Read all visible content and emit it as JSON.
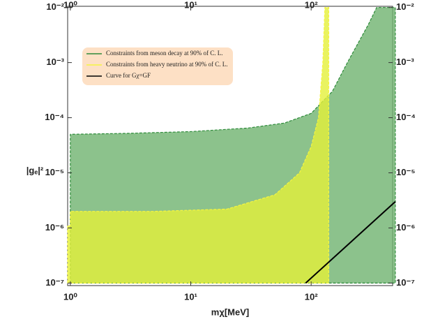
{
  "chart_data": {
    "type": "area",
    "xlabel": "mχ[MeV]",
    "ylabel": "|gₑ|²",
    "log_x": true,
    "log_y": true,
    "xlim": [
      0.95,
      475
    ],
    "ylim": [
      9e-08,
      0.0105
    ],
    "xticks": [
      {
        "value": 1,
        "label": "10⁰"
      },
      {
        "value": 10,
        "label": "10¹"
      },
      {
        "value": 100,
        "label": "10²"
      }
    ],
    "yticks": [
      {
        "value": 1e-07,
        "label": "10⁻⁷"
      },
      {
        "value": 1e-06,
        "label": "10⁻⁶"
      },
      {
        "value": 1e-05,
        "label": "10⁻⁵"
      },
      {
        "value": 0.0001,
        "label": "10⁻⁴"
      },
      {
        "value": 0.001,
        "label": "10⁻³"
      },
      {
        "value": 0.01,
        "label": "10⁻²"
      }
    ],
    "series": [
      {
        "name": "Constraints from meson decay at 90% of C. L.",
        "color": "#2e8b3a",
        "fill": "#6fb36f",
        "x": [
          1,
          1,
          3,
          10,
          30,
          60,
          100,
          150,
          200,
          300,
          350,
          500,
          500
        ],
        "y": [
          1e-07,
          5e-05,
          5.2e-05,
          5.6e-05,
          6.5e-05,
          8e-05,
          0.00012,
          0.0003,
          0.001,
          0.005,
          0.01,
          0.01,
          1e-07
        ]
      },
      {
        "name": "Constraints from heavy neutrino at 90% of C. L.",
        "color": "#f5f542",
        "fill": "#e3f03a",
        "x": [
          0.95,
          0.95,
          1,
          1,
          5,
          20,
          50,
          80,
          100,
          115,
          125,
          130,
          140,
          140
        ],
        "y": [
          1e-07,
          1.1e-06,
          1.1e-06,
          2e-06,
          2e-06,
          2.2e-06,
          4e-06,
          1e-05,
          3e-05,
          0.0001,
          0.001,
          0.01,
          0.01,
          1e-07
        ]
      },
      {
        "name": "Curve for Gχ=GF",
        "color": "#000000",
        "x": [
          90,
          500
        ],
        "y": [
          1e-07,
          3e-06
        ],
        "line": true
      }
    ]
  }
}
